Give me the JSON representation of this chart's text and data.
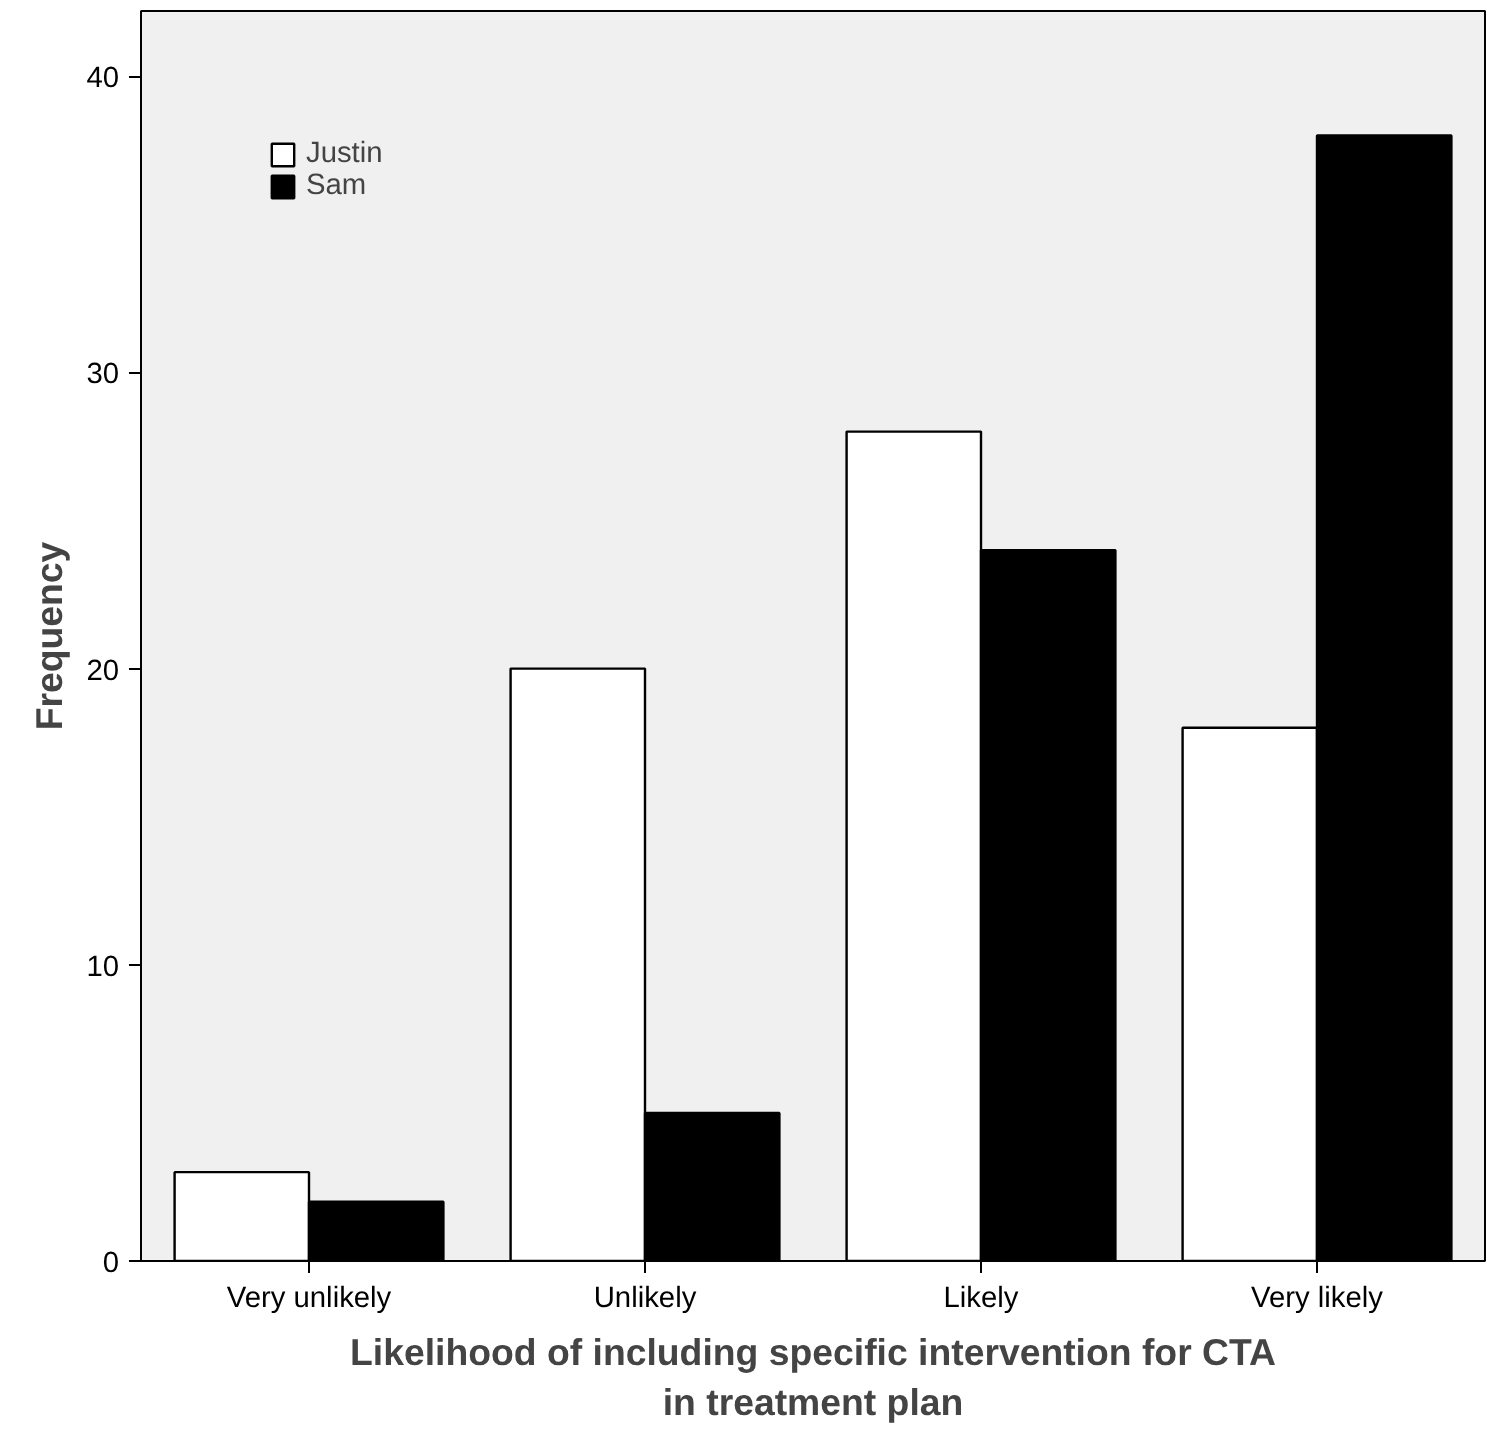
{
  "chart_data": {
    "type": "bar",
    "xlabel": "Likelihood of including specific intervention for CTA\nin treatment plan",
    "ylabel": "Frequency",
    "categories": [
      "Very unlikely",
      "Unlikely",
      "Likely",
      "Very likely"
    ],
    "series": [
      {
        "name": "Justin",
        "color": "#ffffff",
        "values": [
          3,
          20,
          28,
          18
        ]
      },
      {
        "name": "Sam",
        "color": "#000000",
        "values": [
          2,
          5,
          24,
          38
        ]
      }
    ],
    "ylim": [
      0,
      42.2
    ],
    "yticks": [
      0,
      10,
      20,
      30,
      40
    ],
    "grid": false,
    "legend": "top left"
  }
}
